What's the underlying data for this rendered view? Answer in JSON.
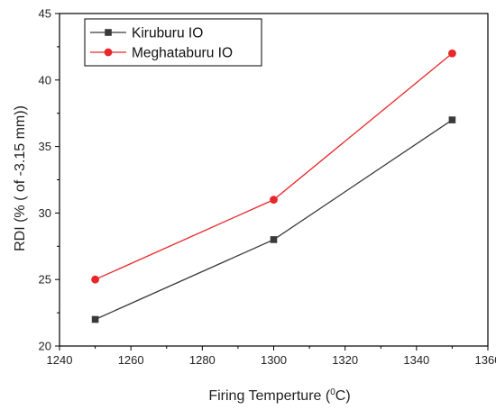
{
  "chart_data": {
    "type": "line",
    "title": "",
    "xlabel": "Firing Temperture (",
    "xlabel_sup": "0",
    "xlabel_unit": "C)",
    "ylabel": "RDI (% ( of -3.15 mm))",
    "xlim": [
      1240,
      1360
    ],
    "ylim": [
      20,
      45
    ],
    "xticks": [
      "1240",
      "1260",
      "1280",
      "1300",
      "1320",
      "1340",
      "1360"
    ],
    "yticks": [
      "20",
      "25",
      "30",
      "35",
      "40",
      "45"
    ],
    "grid": false,
    "legend_position": "top-left",
    "x": [
      1250,
      1300,
      1350
    ],
    "series": [
      {
        "name": "Kiruburu IO",
        "values": [
          22,
          28,
          37
        ],
        "color": "#3a3a3a",
        "marker": "square"
      },
      {
        "name": "Meghataburu IO",
        "values": [
          25,
          31,
          42
        ],
        "color": "#e8272a",
        "marker": "circle"
      }
    ]
  }
}
